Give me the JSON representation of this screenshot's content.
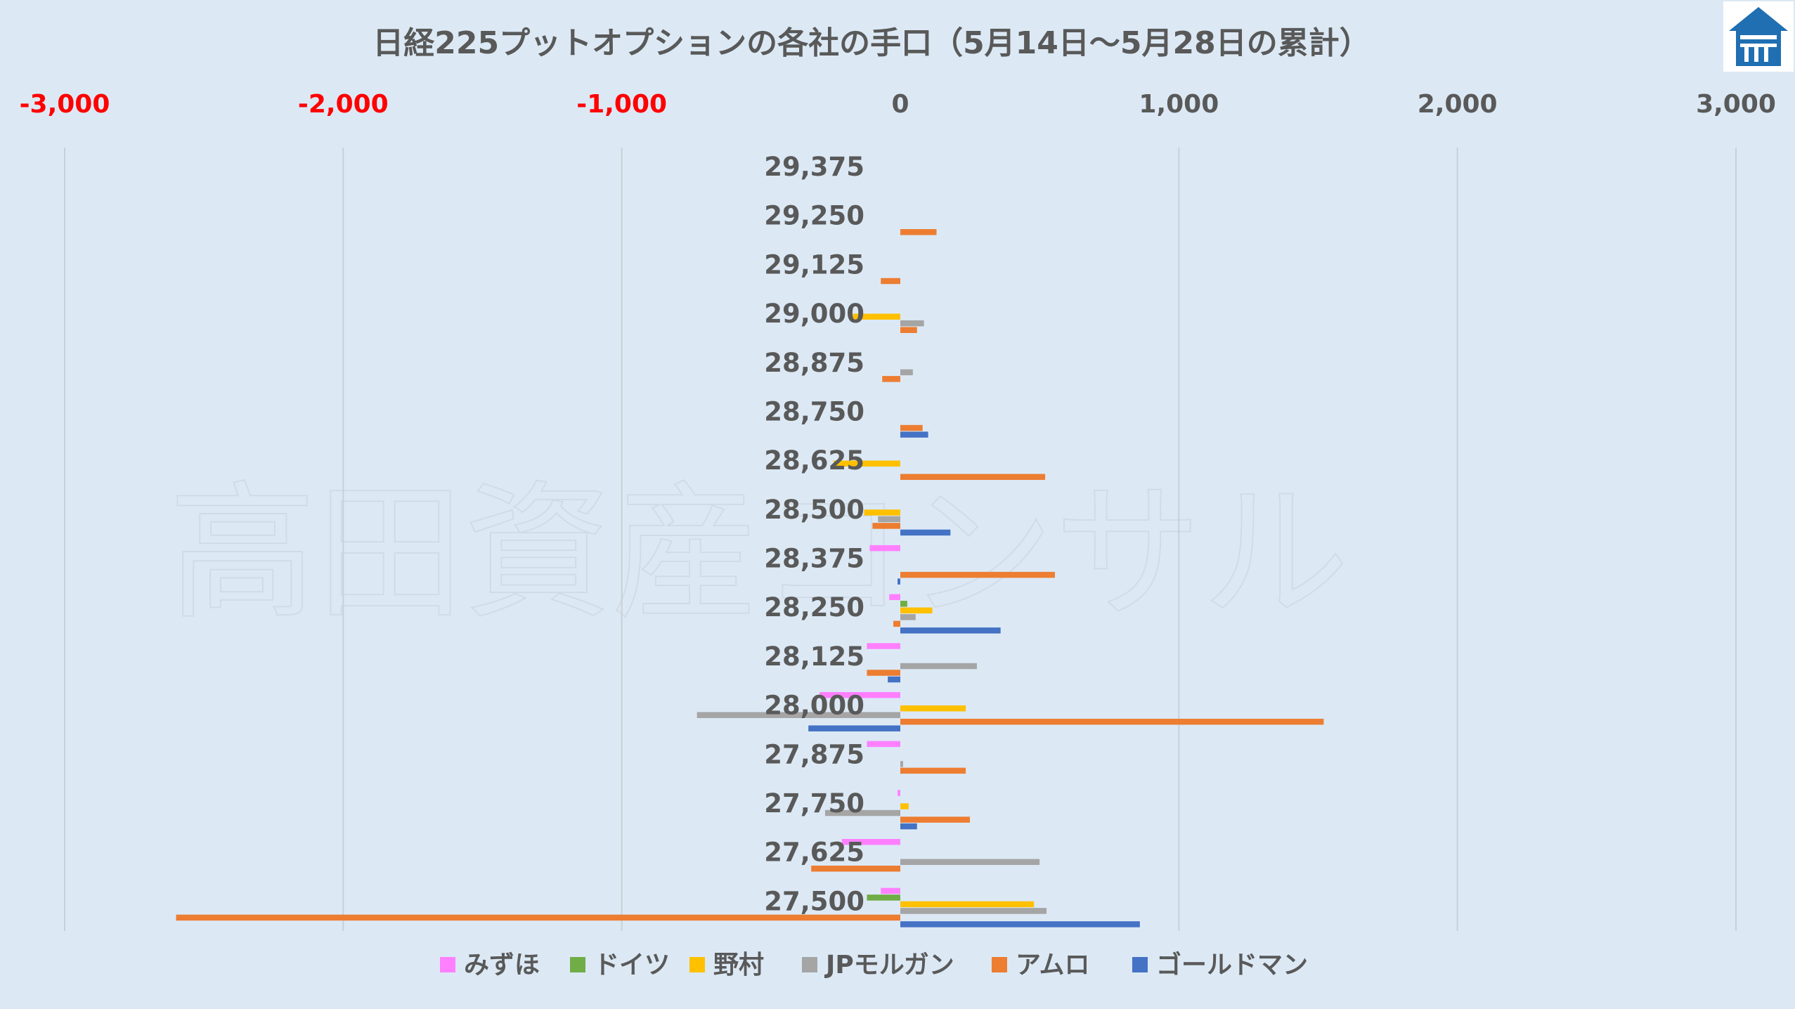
{
  "watermark_text": "高田資産コンサル",
  "logo": {
    "icon": "house-logo-icon",
    "color": "#1f6fb2"
  },
  "chart_data": {
    "type": "bar",
    "orientation": "horizontal",
    "title": "日経225プットオプションの各社の手口（5月14日～5月28日の累計）",
    "categories": [
      "29,375",
      "29,250",
      "29,125",
      "29,000",
      "28,875",
      "28,750",
      "28,625",
      "28,500",
      "28,375",
      "28,250",
      "28,125",
      "28,000",
      "27,875",
      "27,750",
      "27,625",
      "27,500"
    ],
    "xlim": [
      -3000,
      3000
    ],
    "x_ticks": [
      {
        "value": -3000,
        "label": "-3,000",
        "color": "#ff0000"
      },
      {
        "value": -2000,
        "label": "-2,000",
        "color": "#ff0000"
      },
      {
        "value": -1000,
        "label": "-1,000",
        "color": "#ff0000"
      },
      {
        "value": 0,
        "label": "0",
        "color": "#595959"
      },
      {
        "value": 1000,
        "label": "1,000",
        "color": "#595959"
      },
      {
        "value": 2000,
        "label": "2,000",
        "color": "#595959"
      },
      {
        "value": 3000,
        "label": "3,000",
        "color": "#595959"
      }
    ],
    "grid": true,
    "legend_position": "bottom",
    "series": [
      {
        "name": "みずほ",
        "color": "#ff80ff",
        "values": [
          0,
          0,
          0,
          0,
          0,
          0,
          0,
          0,
          -110,
          -40,
          -120,
          -290,
          -120,
          -10,
          -210,
          -70
        ]
      },
      {
        "name": "ドイツ",
        "color": "#70ad47",
        "values": [
          0,
          0,
          0,
          0,
          0,
          0,
          0,
          0,
          0,
          25,
          0,
          0,
          0,
          0,
          0,
          -120
        ]
      },
      {
        "name": "野村",
        "color": "#ffc000",
        "values": [
          0,
          0,
          0,
          -170,
          0,
          0,
          -240,
          -130,
          0,
          115,
          0,
          235,
          0,
          30,
          0,
          480
        ]
      },
      {
        "name": "JPモルガン",
        "color": "#a5a5a5",
        "values": [
          0,
          0,
          0,
          85,
          45,
          0,
          0,
          -80,
          0,
          55,
          275,
          -730,
          10,
          -270,
          500,
          525
        ]
      },
      {
        "name": "アムロ",
        "color": "#ed7d31",
        "values": [
          0,
          130,
          -70,
          60,
          -65,
          80,
          520,
          -100,
          555,
          -25,
          -120,
          1520,
          235,
          250,
          -320,
          -2600
        ]
      },
      {
        "name": "ゴールドマン",
        "color": "#4472c4",
        "values": [
          0,
          0,
          0,
          0,
          0,
          100,
          0,
          180,
          -10,
          360,
          -45,
          -330,
          0,
          60,
          0,
          860
        ]
      }
    ]
  }
}
